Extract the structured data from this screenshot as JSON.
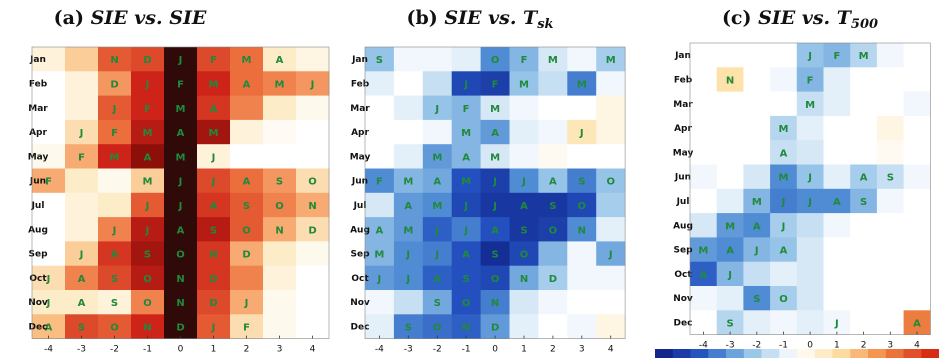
{
  "chart_data": [
    {
      "type": "heatmap",
      "panel_label": "(a)",
      "title_main": "SIE vs. SIE",
      "title_sub": "",
      "rows": [
        "Jan",
        "Feb",
        "Mar",
        "Apr",
        "May",
        "Jun",
        "Jul",
        "Aug",
        "Sep",
        "Oct",
        "Nov",
        "Dec"
      ],
      "cols": [
        "-4",
        "-3",
        "-2",
        "-1",
        "0",
        "1",
        "2",
        "3",
        "4"
      ],
      "palette": "reds",
      "values": [
        [
          0.1,
          0.25,
          0.55,
          0.6,
          1.0,
          0.6,
          0.5,
          0.15,
          0.08
        ],
        [
          0.0,
          0.1,
          0.4,
          0.7,
          1.0,
          0.7,
          0.5,
          0.45,
          0.4
        ],
        [
          0.0,
          0.1,
          0.55,
          0.7,
          1.0,
          0.65,
          0.45,
          0.15,
          0.05
        ],
        [
          0.0,
          0.2,
          0.5,
          0.75,
          1.0,
          0.8,
          0.1,
          0.03,
          0.0
        ],
        [
          0.05,
          0.35,
          0.7,
          0.85,
          1.0,
          0.1,
          0.0,
          0.0,
          0.0
        ],
        [
          0.35,
          0.15,
          0.05,
          0.25,
          1.0,
          0.6,
          0.5,
          0.4,
          0.2
        ],
        [
          0.0,
          0.1,
          0.15,
          0.55,
          1.0,
          0.65,
          0.55,
          0.45,
          0.35
        ],
        [
          0.0,
          0.1,
          0.45,
          0.75,
          1.0,
          0.75,
          0.55,
          0.35,
          0.2
        ],
        [
          0.0,
          0.25,
          0.65,
          0.8,
          1.0,
          0.65,
          0.35,
          0.15,
          0.05
        ],
        [
          0.2,
          0.45,
          0.6,
          0.75,
          1.0,
          0.65,
          0.45,
          0.1,
          0.0
        ],
        [
          0.15,
          0.15,
          0.1,
          0.45,
          1.0,
          0.6,
          0.35,
          0.05,
          0.0
        ],
        [
          0.3,
          0.6,
          0.55,
          0.7,
          1.0,
          0.55,
          0.2,
          0.05,
          0.0
        ]
      ],
      "letters": [
        [
          "",
          "",
          "N",
          "D",
          "J",
          "F",
          "M",
          "A",
          ""
        ],
        [
          "",
          "",
          "D",
          "J",
          "F",
          "M",
          "A",
          "M",
          "J"
        ],
        [
          "",
          "",
          "J",
          "F",
          "M",
          "A",
          "",
          "",
          ""
        ],
        [
          "",
          "J",
          "F",
          "M",
          "A",
          "M",
          "",
          "",
          ""
        ],
        [
          "",
          "F",
          "M",
          "A",
          "M",
          "J",
          "",
          "",
          ""
        ],
        [
          "F",
          "",
          "",
          "M",
          "J",
          "J",
          "A",
          "S",
          "O"
        ],
        [
          "",
          "",
          "",
          "J",
          "J",
          "A",
          "S",
          "O",
          "N"
        ],
        [
          "",
          "",
          "J",
          "J",
          "A",
          "S",
          "O",
          "N",
          "D"
        ],
        [
          "",
          "J",
          "A",
          "S",
          "O",
          "N",
          "D",
          "",
          ""
        ],
        [
          "J",
          "A",
          "S",
          "O",
          "N",
          "D",
          "",
          "",
          ""
        ],
        [
          "J",
          "A",
          "S",
          "O",
          "N",
          "D",
          "J",
          "",
          ""
        ],
        [
          "A",
          "S",
          "O",
          "N",
          "D",
          "J",
          "F",
          "",
          ""
        ]
      ]
    },
    {
      "type": "heatmap",
      "panel_label": "(b)",
      "title_main": "SIE vs. T",
      "title_sub": "sk",
      "rows": [
        "Jan",
        "Feb",
        "Mar",
        "Apr",
        "May",
        "Jun",
        "Jul",
        "Aug",
        "Sep",
        "Oct",
        "Nov",
        "Dec"
      ],
      "cols": [
        "-4",
        "-3",
        "-2",
        "-1",
        "0",
        "1",
        "2",
        "3",
        "4"
      ],
      "palette": "blues",
      "values": [
        [
          0.35,
          0.05,
          0.05,
          0.1,
          0.55,
          0.4,
          0.15,
          0.05,
          0.3
        ],
        [
          0.1,
          0.0,
          0.2,
          0.8,
          0.85,
          0.35,
          0.2,
          0.6,
          0.05
        ],
        [
          0.0,
          0.1,
          0.35,
          0.4,
          0.15,
          0.05,
          0.0,
          0.0,
          -0.1
        ],
        [
          0.0,
          0.0,
          0.05,
          0.4,
          0.5,
          0.1,
          0.05,
          -0.25,
          -0.1
        ],
        [
          0.0,
          0.1,
          0.5,
          0.4,
          0.15,
          0.05,
          -0.05,
          0.0,
          0.0
        ],
        [
          0.55,
          0.4,
          0.45,
          0.75,
          0.85,
          0.55,
          0.35,
          0.6,
          0.35
        ],
        [
          0.15,
          0.5,
          0.55,
          0.8,
          0.9,
          0.9,
          0.9,
          0.8,
          0.3
        ],
        [
          0.4,
          0.5,
          0.7,
          0.6,
          0.75,
          0.9,
          0.85,
          0.55,
          0.1
        ],
        [
          0.4,
          0.55,
          0.6,
          0.75,
          0.95,
          0.8,
          0.4,
          0.05,
          0.45
        ],
        [
          0.5,
          0.55,
          0.7,
          0.75,
          0.8,
          0.45,
          0.3,
          0.05,
          0.05
        ],
        [
          0.05,
          0.2,
          0.45,
          0.75,
          0.6,
          0.15,
          0.05,
          0.0,
          0.0
        ],
        [
          0.1,
          0.6,
          0.65,
          0.7,
          0.5,
          0.1,
          0.0,
          0.05,
          -0.1
        ]
      ],
      "letters": [
        [
          "S",
          "",
          "",
          "",
          "O",
          "F",
          "M",
          "",
          "M"
        ],
        [
          "",
          "",
          "",
          "J",
          "F",
          "M",
          "",
          "M",
          ""
        ],
        [
          "",
          "",
          "J",
          "F",
          "M",
          "",
          "",
          "",
          ""
        ],
        [
          "",
          "",
          "",
          "M",
          "A",
          "",
          "",
          "J",
          ""
        ],
        [
          "",
          "",
          "M",
          "A",
          "M",
          "",
          "",
          "",
          ""
        ],
        [
          "F",
          "M",
          "A",
          "M",
          "J",
          "J",
          "A",
          "S",
          "O"
        ],
        [
          "",
          "A",
          "M",
          "J",
          "J",
          "A",
          "S",
          "O",
          ""
        ],
        [
          "A",
          "M",
          "J",
          "J",
          "A",
          "S",
          "O",
          "N",
          ""
        ],
        [
          "M",
          "J",
          "J",
          "A",
          "S",
          "O",
          "",
          "",
          "J"
        ],
        [
          "J",
          "J",
          "A",
          "S",
          "O",
          "N",
          "D",
          "",
          ""
        ],
        [
          "",
          "",
          "S",
          "O",
          "N",
          "",
          "",
          "",
          ""
        ],
        [
          "",
          "S",
          "O",
          "N",
          "D",
          "",
          "",
          "",
          ""
        ]
      ]
    },
    {
      "type": "heatmap",
      "panel_label": "(c)",
      "title_main": "SIE vs. T",
      "title_sub": "500",
      "rows": [
        "Jan",
        "Feb",
        "Mar",
        "Apr",
        "May",
        "Jun",
        "Jul",
        "Aug",
        "Sep",
        "Oct",
        "Nov",
        "Dec"
      ],
      "cols": [
        "-4",
        "-3",
        "-2",
        "-1",
        "0",
        "1",
        "2",
        "3",
        "4"
      ],
      "palette": "diverging",
      "values": [
        [
          0.0,
          0.0,
          0.0,
          0.0,
          0.35,
          0.4,
          0.25,
          0.05,
          0.0
        ],
        [
          0.0,
          -0.3,
          0.0,
          0.05,
          0.4,
          0.1,
          0.0,
          0.0,
          0.0
        ],
        [
          0.0,
          0.0,
          0.0,
          0.0,
          0.2,
          0.1,
          0.0,
          0.0,
          0.05
        ],
        [
          0.0,
          0.0,
          0.0,
          0.25,
          0.1,
          0.0,
          0.0,
          -0.1,
          0.0
        ],
        [
          0.0,
          0.0,
          0.0,
          0.2,
          0.15,
          0.0,
          0.0,
          -0.05,
          0.0
        ],
        [
          0.05,
          0.0,
          0.15,
          0.55,
          0.35,
          0.1,
          0.3,
          0.2,
          0.05
        ],
        [
          0.0,
          0.1,
          0.4,
          0.6,
          0.55,
          0.55,
          0.4,
          0.05,
          0.0
        ],
        [
          0.15,
          0.5,
          0.55,
          0.3,
          0.2,
          0.05,
          0.0,
          0.0,
          0.0
        ],
        [
          0.5,
          0.55,
          0.4,
          0.35,
          0.15,
          0.0,
          0.0,
          0.0,
          0.0
        ],
        [
          0.7,
          0.4,
          0.2,
          0.1,
          0.15,
          0.0,
          0.0,
          0.0,
          0.0
        ],
        [
          0.05,
          0.1,
          0.55,
          0.3,
          0.15,
          0.0,
          0.0,
          0.0,
          0.0
        ],
        [
          0.0,
          0.25,
          0.1,
          0.05,
          0.1,
          0.05,
          0.0,
          0.0,
          -0.7
        ]
      ],
      "letters": [
        [
          "",
          "",
          "",
          "",
          "J",
          "F",
          "M",
          "",
          ""
        ],
        [
          "",
          "N",
          "",
          "",
          "F",
          "",
          "",
          "",
          ""
        ],
        [
          "",
          "",
          "",
          "",
          "M",
          "",
          "",
          "",
          ""
        ],
        [
          "",
          "",
          "",
          "M",
          "",
          "",
          "",
          "",
          ""
        ],
        [
          "",
          "",
          "",
          "A",
          "",
          "",
          "",
          "",
          ""
        ],
        [
          "",
          "",
          "",
          "M",
          "J",
          "",
          "A",
          "S",
          ""
        ],
        [
          "",
          "",
          "M",
          "J",
          "J",
          "A",
          "S",
          "",
          ""
        ],
        [
          "",
          "M",
          "A",
          "J",
          "",
          "",
          "",
          "",
          ""
        ],
        [
          "M",
          "A",
          "J",
          "A",
          "",
          "",
          "",
          "",
          ""
        ],
        [
          "A",
          "J",
          "",
          "",
          "",
          "",
          "",
          "",
          ""
        ],
        [
          "",
          "",
          "S",
          "O",
          "",
          "",
          "",
          "",
          ""
        ],
        [
          "",
          "S",
          "",
          "",
          "",
          "J",
          "",
          "",
          "A"
        ]
      ]
    }
  ]
}
